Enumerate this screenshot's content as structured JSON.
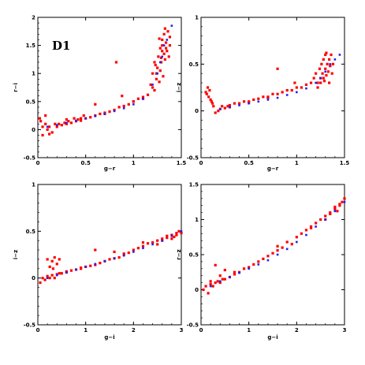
{
  "chart_data": [
    {
      "type": "scatter",
      "panel_tag": "D1",
      "xlabel": "g−r",
      "ylabel": "r−i",
      "xlim": [
        0,
        1.5
      ],
      "ylim": [
        -0.5,
        2
      ],
      "xticks": [
        0,
        0.5,
        1,
        1.5
      ],
      "xtick_labels": [
        "0",
        "0.5",
        "1",
        "1.5"
      ],
      "yticks": [
        -0.5,
        0,
        0.5,
        1,
        1.5,
        2
      ],
      "ytick_labels": [
        "-0.5",
        "0",
        "0.5",
        "1",
        "1.5",
        "2"
      ],
      "grid": false,
      "colors": {
        "observed": "#ff0000",
        "model": "#2222ee"
      },
      "series": [
        {
          "x": [
            0.02,
            0.05,
            0.08,
            0.1,
            0.12,
            0.15,
            0.18,
            0.2,
            0.22,
            0.25,
            0.28,
            0.3,
            0.32,
            0.35,
            0.38,
            0.4,
            0.42,
            0.45,
            0.48,
            0.5,
            0.55,
            0.6,
            0.65,
            0.7,
            0.75,
            0.8,
            0.85,
            0.9,
            0.95,
            1.0,
            1.05,
            1.1,
            1.15,
            1.18,
            1.2,
            1.22,
            1.22,
            1.24,
            1.25,
            1.26,
            1.27,
            1.28,
            1.28,
            1.29,
            1.3,
            1.3,
            1.31,
            1.32,
            1.32,
            1.33,
            1.34,
            1.35,
            1.36,
            1.37,
            1.38,
            1.38,
            1.2,
            1.23,
            1.27,
            1.3,
            1.33,
            1.24,
            1.29,
            1.34,
            0.05,
            0.08,
            0.03,
            0.12,
            0.6,
            0.82,
            0.88,
            1.1,
            0.3,
            0.45,
            0.7,
            1.0
          ],
          "y": [
            0.2,
            0.05,
            0.1,
            0.0,
            0.05,
            -0.05,
            0.1,
            0.05,
            0.1,
            0.08,
            0.12,
            0.1,
            0.15,
            0.12,
            0.2,
            0.15,
            0.18,
            0.2,
            0.25,
            0.2,
            0.22,
            0.25,
            0.28,
            0.3,
            0.32,
            0.35,
            0.4,
            0.42,
            0.45,
            0.5,
            0.55,
            0.58,
            0.62,
            0.8,
            1.0,
            0.7,
            1.2,
            0.9,
            1.1,
            1.3,
            0.85,
            1.45,
            1.05,
            1.2,
            1.5,
            1.6,
            0.95,
            1.35,
            1.7,
            1.25,
            1.55,
            1.4,
            1.75,
            1.3,
            1.65,
            1.5,
            0.75,
            1.15,
            1.62,
            1.4,
            1.8,
            1.0,
            1.28,
            1.45,
            -0.1,
            0.25,
            0.15,
            -0.08,
            0.45,
            1.2,
            0.6,
            0.55,
            0.18,
            0.16,
            0.28,
            0.5
          ]
        },
        {
          "x": [
            0.1,
            0.2,
            0.3,
            0.4,
            0.5,
            0.6,
            0.7,
            0.8,
            0.9,
            1.0,
            1.1,
            1.2,
            1.25,
            1.3,
            1.32,
            1.35,
            1.4,
            1.28
          ],
          "y": [
            0.05,
            0.08,
            0.12,
            0.16,
            0.2,
            0.24,
            0.28,
            0.33,
            0.38,
            0.45,
            0.55,
            0.8,
            1.0,
            1.3,
            1.5,
            1.6,
            1.85,
            1.2
          ]
        }
      ]
    },
    {
      "type": "scatter",
      "xlabel": "g−r",
      "ylabel": "i−z",
      "xlim": [
        0,
        1.5
      ],
      "ylim": [
        -0.5,
        1
      ],
      "xticks": [
        0,
        0.5,
        1,
        1.5
      ],
      "xtick_labels": [
        "0",
        "0.5",
        "1",
        "1.5"
      ],
      "yticks": [
        -0.5,
        0,
        0.5,
        1
      ],
      "ytick_labels": [
        "-0.5",
        "0",
        "0.5",
        "1"
      ],
      "grid": false,
      "colors": {
        "observed": "#ff0000",
        "model": "#2222ee"
      },
      "series": [
        {
          "x": [
            0.05,
            0.08,
            0.1,
            0.12,
            0.15,
            0.18,
            0.2,
            0.22,
            0.25,
            0.28,
            0.3,
            0.35,
            0.4,
            0.45,
            0.5,
            0.55,
            0.6,
            0.65,
            0.7,
            0.75,
            0.8,
            0.85,
            0.9,
            0.95,
            1.0,
            1.05,
            1.1,
            1.15,
            1.18,
            1.2,
            1.22,
            1.24,
            1.25,
            1.26,
            1.27,
            1.28,
            1.29,
            1.3,
            1.3,
            1.31,
            1.32,
            1.33,
            1.34,
            1.35,
            1.36,
            1.37,
            1.38,
            1.22,
            1.25,
            1.28,
            1.31,
            1.34,
            0.06,
            0.09,
            0.11,
            0.13,
            0.07,
            0.8,
            0.98,
            0.3,
            0.5,
            0.7
          ],
          "y": [
            0.2,
            0.15,
            0.12,
            0.08,
            -0.02,
            0.0,
            0.02,
            0.05,
            0.03,
            0.05,
            0.06,
            0.08,
            0.08,
            0.1,
            0.1,
            0.12,
            0.13,
            0.15,
            0.15,
            0.18,
            0.18,
            0.2,
            0.22,
            0.22,
            0.25,
            0.25,
            0.28,
            0.3,
            0.35,
            0.4,
            0.3,
            0.45,
            0.35,
            0.5,
            0.4,
            0.55,
            0.32,
            0.6,
            0.45,
            0.38,
            0.5,
            0.42,
            0.55,
            0.48,
            0.6,
            0.4,
            0.5,
            0.25,
            0.3,
            0.35,
            0.62,
            0.3,
            0.18,
            0.22,
            0.1,
            0.05,
            0.25,
            0.45,
            0.3,
            0.04,
            0.09,
            0.14
          ],
          "ignore": true
        },
        {
          "x": [
            0.2,
            0.3,
            0.4,
            0.5,
            0.6,
            0.7,
            0.8,
            0.9,
            1.0,
            1.1,
            1.2,
            1.25,
            1.3,
            1.35,
            1.4,
            1.45
          ],
          "y": [
            0.02,
            0.04,
            0.06,
            0.08,
            0.1,
            0.12,
            0.14,
            0.17,
            0.2,
            0.24,
            0.3,
            0.35,
            0.42,
            0.5,
            0.55,
            0.6
          ]
        }
      ]
    },
    {
      "type": "scatter",
      "xlabel": "g−i",
      "ylabel": "i−z",
      "xlim": [
        0,
        3
      ],
      "ylim": [
        -0.5,
        1
      ],
      "xticks": [
        0,
        1,
        2,
        3
      ],
      "xtick_labels": [
        "0",
        "1",
        "2",
        "3"
      ],
      "yticks": [
        -0.5,
        0,
        0.5,
        1
      ],
      "ytick_labels": [
        "-0.5",
        "0",
        "0.5",
        "1"
      ],
      "grid": false,
      "colors": {
        "observed": "#ff0000",
        "model": "#2222ee"
      },
      "series": [
        {
          "x": [
            0.05,
            0.1,
            0.15,
            0.2,
            0.25,
            0.3,
            0.35,
            0.4,
            0.45,
            0.5,
            0.6,
            0.7,
            0.8,
            0.9,
            1.0,
            1.1,
            1.2,
            1.3,
            1.4,
            1.5,
            1.6,
            1.7,
            1.8,
            1.9,
            2.0,
            2.1,
            2.2,
            2.3,
            2.4,
            2.5,
            2.6,
            2.7,
            2.8,
            2.85,
            2.9,
            2.95,
            3.0,
            2.5,
            2.6,
            2.7,
            2.8,
            2.9,
            0.2,
            0.3,
            0.35,
            0.4,
            0.25,
            0.32,
            0.45,
            1.2,
            1.6,
            2.2,
            0.6,
            0.9,
            1.8
          ],
          "y": [
            -0.05,
            0.0,
            -0.02,
            0.02,
            0.0,
            0.03,
            0.0,
            0.04,
            0.05,
            0.05,
            0.07,
            0.08,
            0.09,
            0.1,
            0.12,
            0.13,
            0.14,
            0.16,
            0.18,
            0.2,
            0.21,
            0.22,
            0.25,
            0.27,
            0.3,
            0.32,
            0.34,
            0.37,
            0.38,
            0.4,
            0.42,
            0.45,
            0.46,
            0.44,
            0.48,
            0.5,
            0.48,
            0.36,
            0.4,
            0.43,
            0.42,
            0.46,
            0.2,
            0.18,
            0.22,
            0.15,
            0.12,
            0.1,
            0.2,
            0.3,
            0.28,
            0.38,
            0.06,
            0.11,
            0.26
          ]
        },
        {
          "x": [
            0.2,
            0.4,
            0.6,
            0.8,
            1.0,
            1.2,
            1.4,
            1.6,
            1.8,
            2.0,
            2.2,
            2.4,
            2.6,
            2.8,
            3.0
          ],
          "y": [
            0.0,
            0.03,
            0.06,
            0.09,
            0.12,
            0.15,
            0.18,
            0.21,
            0.24,
            0.28,
            0.32,
            0.36,
            0.4,
            0.45,
            0.5
          ]
        }
      ]
    },
    {
      "type": "scatter",
      "xlabel": "g−i",
      "ylabel": "r−z",
      "xlim": [
        0,
        3
      ],
      "ylim": [
        -0.5,
        1.5
      ],
      "xticks": [
        0,
        1,
        2,
        3
      ],
      "xtick_labels": [
        "0",
        "1",
        "2",
        "3"
      ],
      "yticks": [
        -0.5,
        0,
        0.5,
        1,
        1.5
      ],
      "ytick_labels": [
        "-0.5",
        "0",
        "0.5",
        "1",
        "1.5"
      ],
      "grid": false,
      "colors": {
        "observed": "#ff0000",
        "model": "#2222ee"
      },
      "series": [
        {
          "x": [
            0.05,
            0.1,
            0.15,
            0.2,
            0.25,
            0.3,
            0.35,
            0.4,
            0.45,
            0.5,
            0.6,
            0.7,
            0.8,
            0.9,
            1.0,
            1.1,
            1.2,
            1.3,
            1.4,
            1.5,
            1.6,
            1.7,
            1.8,
            1.9,
            2.0,
            2.1,
            2.2,
            2.3,
            2.4,
            2.5,
            2.6,
            2.7,
            2.8,
            2.85,
            2.9,
            2.95,
            3.0,
            2.6,
            2.7,
            2.8,
            2.9,
            0.3,
            0.4,
            0.5,
            1.6,
            2.3,
            0.2,
            0.7
          ],
          "y": [
            0.0,
            0.05,
            -0.05,
            0.08,
            0.05,
            0.1,
            0.12,
            0.1,
            0.15,
            0.15,
            0.18,
            0.22,
            0.25,
            0.3,
            0.32,
            0.36,
            0.4,
            0.44,
            0.48,
            0.52,
            0.56,
            0.6,
            0.68,
            0.65,
            0.75,
            0.8,
            0.85,
            0.9,
            0.95,
            1.0,
            1.05,
            1.1,
            1.15,
            1.12,
            1.2,
            1.25,
            1.3,
            1.0,
            1.08,
            1.18,
            1.22,
            0.35,
            0.2,
            0.28,
            0.62,
            0.88,
            0.12,
            0.25
          ]
        },
        {
          "x": [
            0.2,
            0.4,
            0.6,
            0.8,
            1.0,
            1.2,
            1.4,
            1.6,
            1.8,
            2.0,
            2.2,
            2.4,
            2.6,
            2.8,
            3.0
          ],
          "y": [
            0.05,
            0.12,
            0.18,
            0.24,
            0.3,
            0.36,
            0.42,
            0.5,
            0.58,
            0.68,
            0.78,
            0.9,
            1.0,
            1.12,
            1.25
          ]
        }
      ]
    }
  ]
}
